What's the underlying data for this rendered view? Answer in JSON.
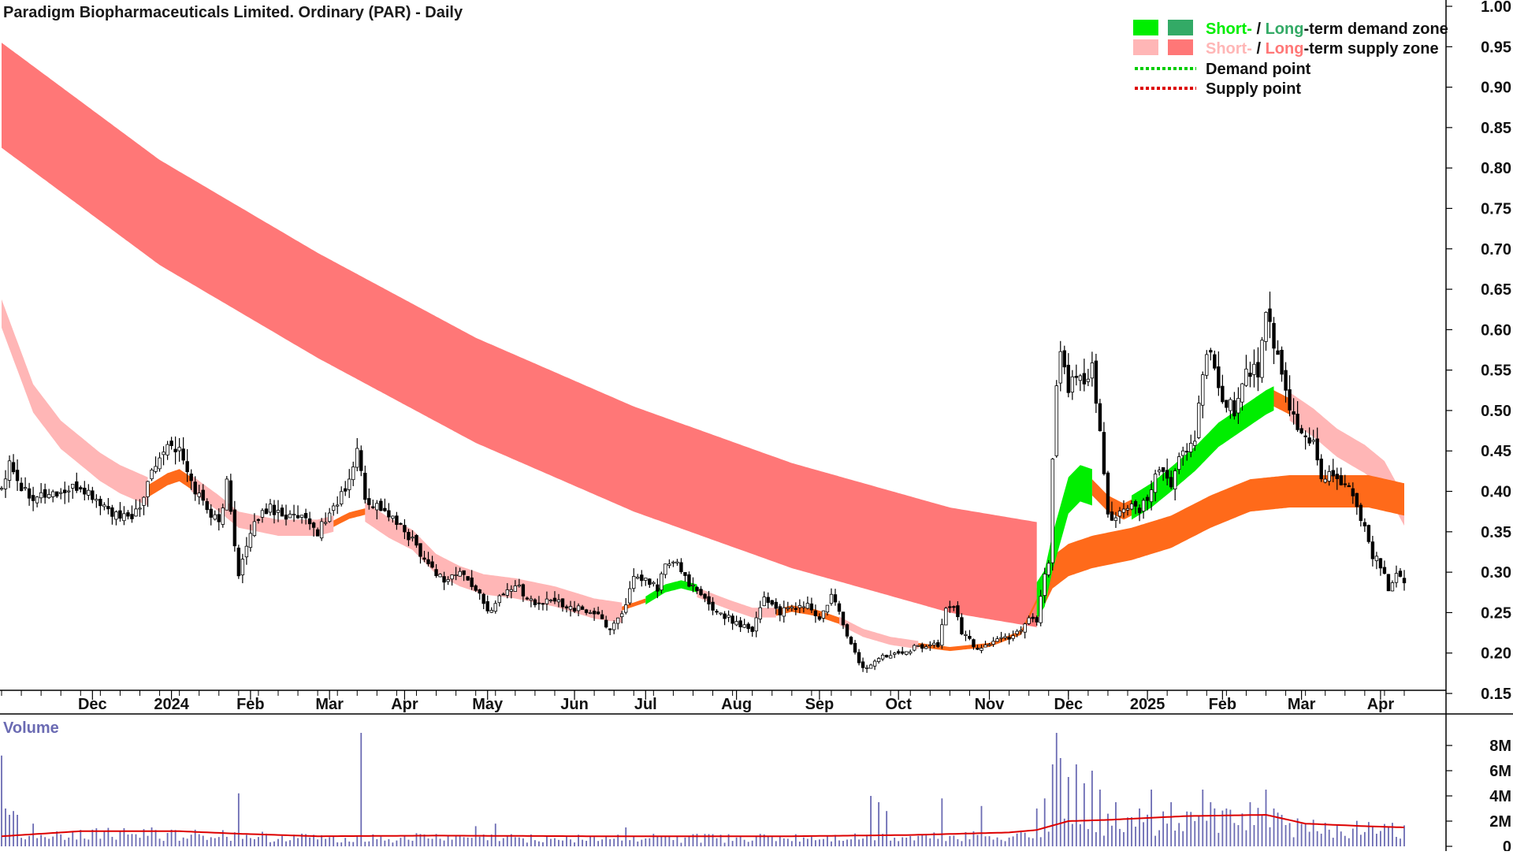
{
  "chart_data": {
    "type": "candlestick",
    "title": "Paradigm Biopharmaceuticals Limited. Ordinary (PAR) - Daily",
    "y_ticks": [
      "1.00",
      "0.95",
      "0.90",
      "0.85",
      "0.80",
      "0.75",
      "0.70",
      "0.65",
      "0.60",
      "0.55",
      "0.50",
      "0.45",
      "0.40",
      "0.35",
      "0.30",
      "0.25",
      "0.20",
      "0.15"
    ],
    "ylim": [
      0.15,
      1.0
    ],
    "x_ticks": [
      "Dec",
      "2024",
      "Feb",
      "Mar",
      "Apr",
      "May",
      "Jun",
      "Jul",
      "Aug",
      "Sep",
      "Oct",
      "Nov",
      "Dec",
      "2025",
      "Feb",
      "Mar",
      "Apr"
    ],
    "x_tick_index": [
      23,
      43,
      63,
      83,
      102,
      123,
      145,
      163,
      186,
      207,
      227,
      250,
      270,
      290,
      309,
      329,
      349
    ],
    "legend": {
      "demand_zone": {
        "prefix_short": "Short-",
        "sep": " / ",
        "prefix_long": "Long",
        "suffix": "-term demand zone"
      },
      "supply_zone": {
        "prefix_short": "Short-",
        "sep": " / ",
        "prefix_long": "Long",
        "suffix": "-term supply zone"
      },
      "demand_point": "Demand point",
      "supply_point": "Supply point"
    },
    "colors": {
      "short_demand": "#00ee00",
      "long_demand": "#33aa66",
      "short_supply": "#ffb6b6",
      "long_supply": "#ff7777",
      "demand_point": "#00cc00",
      "supply_point": "#dd0000",
      "bullish_crossover": "#ff6a1a",
      "volume_bar": "#6b6bb3",
      "volume_ma": "#dd0000",
      "candle": "#000000"
    },
    "close_knots": [
      [
        0,
        0.405
      ],
      [
        2,
        0.44
      ],
      [
        5,
        0.405
      ],
      [
        8,
        0.395
      ],
      [
        15,
        0.398
      ],
      [
        20,
        0.405
      ],
      [
        25,
        0.385
      ],
      [
        30,
        0.365
      ],
      [
        35,
        0.375
      ],
      [
        38,
        0.43
      ],
      [
        42,
        0.46
      ],
      [
        45,
        0.45
      ],
      [
        48,
        0.41
      ],
      [
        52,
        0.38
      ],
      [
        55,
        0.36
      ],
      [
        57,
        0.41
      ],
      [
        60,
        0.3
      ],
      [
        62,
        0.33
      ],
      [
        65,
        0.37
      ],
      [
        68,
        0.38
      ],
      [
        72,
        0.37
      ],
      [
        76,
        0.365
      ],
      [
        80,
        0.35
      ],
      [
        84,
        0.38
      ],
      [
        88,
        0.41
      ],
      [
        90,
        0.455
      ],
      [
        92,
        0.39
      ],
      [
        96,
        0.38
      ],
      [
        100,
        0.36
      ],
      [
        104,
        0.34
      ],
      [
        108,
        0.31
      ],
      [
        112,
        0.29
      ],
      [
        116,
        0.3
      ],
      [
        120,
        0.28
      ],
      [
        123,
        0.25
      ],
      [
        126,
        0.27
      ],
      [
        130,
        0.285
      ],
      [
        135,
        0.26
      ],
      [
        140,
        0.265
      ],
      [
        145,
        0.255
      ],
      [
        150,
        0.25
      ],
      [
        154,
        0.23
      ],
      [
        157,
        0.25
      ],
      [
        160,
        0.29
      ],
      [
        163,
        0.29
      ],
      [
        166,
        0.28
      ],
      [
        168,
        0.31
      ],
      [
        171,
        0.31
      ],
      [
        175,
        0.28
      ],
      [
        180,
        0.255
      ],
      [
        185,
        0.24
      ],
      [
        190,
        0.23
      ],
      [
        193,
        0.27
      ],
      [
        197,
        0.25
      ],
      [
        200,
        0.255
      ],
      [
        204,
        0.26
      ],
      [
        207,
        0.24
      ],
      [
        210,
        0.27
      ],
      [
        212,
        0.25
      ],
      [
        215,
        0.21
      ],
      [
        218,
        0.18
      ],
      [
        221,
        0.19
      ],
      [
        225,
        0.2
      ],
      [
        230,
        0.205
      ],
      [
        234,
        0.21
      ],
      [
        237,
        0.21
      ],
      [
        239,
        0.255
      ],
      [
        241,
        0.26
      ],
      [
        243,
        0.225
      ],
      [
        247,
        0.205
      ],
      [
        251,
        0.215
      ],
      [
        255,
        0.22
      ],
      [
        258,
        0.23
      ],
      [
        260,
        0.245
      ],
      [
        262,
        0.24
      ],
      [
        264,
        0.3
      ],
      [
        265,
        0.31
      ],
      [
        266,
        0.44
      ],
      [
        267,
        0.54
      ],
      [
        268,
        0.57
      ],
      [
        270,
        0.53
      ],
      [
        272,
        0.54
      ],
      [
        274,
        0.53
      ],
      [
        276,
        0.55
      ],
      [
        278,
        0.47
      ],
      [
        280,
        0.37
      ],
      [
        282,
        0.37
      ],
      [
        285,
        0.38
      ],
      [
        288,
        0.375
      ],
      [
        291,
        0.4
      ],
      [
        293,
        0.43
      ],
      [
        296,
        0.41
      ],
      [
        299,
        0.45
      ],
      [
        302,
        0.46
      ],
      [
        304,
        0.55
      ],
      [
        306,
        0.57
      ],
      [
        308,
        0.52
      ],
      [
        310,
        0.51
      ],
      [
        312,
        0.5
      ],
      [
        315,
        0.55
      ],
      [
        318,
        0.55
      ],
      [
        320,
        0.62
      ],
      [
        322,
        0.58
      ],
      [
        324,
        0.54
      ],
      [
        326,
        0.5
      ],
      [
        329,
        0.47
      ],
      [
        332,
        0.46
      ],
      [
        334,
        0.42
      ],
      [
        337,
        0.42
      ],
      [
        340,
        0.41
      ],
      [
        343,
        0.38
      ],
      [
        345,
        0.36
      ],
      [
        347,
        0.32
      ],
      [
        349,
        0.31
      ],
      [
        351,
        0.28
      ],
      [
        353,
        0.3
      ],
      [
        355,
        0.29
      ]
    ],
    "zones": {
      "long_supply": {
        "knots": [
          [
            0,
            0.89
          ],
          [
            40,
            0.745
          ],
          [
            80,
            0.63
          ],
          [
            120,
            0.525
          ],
          [
            160,
            0.44
          ],
          [
            200,
            0.37
          ],
          [
            240,
            0.315
          ],
          [
            262,
            0.297
          ]
        ],
        "width": 0.13
      },
      "short_supply": [
        {
          "knots": [
            [
              0,
              0.62
            ],
            [
              8,
              0.515
            ],
            [
              15,
              0.47
            ],
            [
              25,
              0.43
            ],
            [
              30,
              0.415
            ],
            [
              37,
              0.4
            ]
          ],
          "width": 0.035
        },
        {
          "knots": [
            [
              48,
              0.41
            ],
            [
              55,
              0.385
            ],
            [
              60,
              0.365
            ],
            [
              65,
              0.36
            ],
            [
              70,
              0.355
            ],
            [
              76,
              0.355
            ],
            [
              80,
              0.355
            ],
            [
              84,
              0.36
            ]
          ],
          "width": 0.02
        },
        {
          "knots": [
            [
              92,
              0.375
            ],
            [
              98,
              0.355
            ],
            [
              104,
              0.34
            ],
            [
              110,
              0.31
            ],
            [
              116,
              0.295
            ],
            [
              122,
              0.285
            ],
            [
              130,
              0.28
            ],
            [
              140,
              0.27
            ],
            [
              150,
              0.255
            ],
            [
              157,
              0.25
            ]
          ],
          "width": 0.025
        },
        {
          "knots": [
            [
              176,
              0.275
            ],
            [
              184,
              0.26
            ],
            [
              190,
              0.25
            ],
            [
              196,
              0.25
            ]
          ],
          "width": 0.012
        },
        {
          "knots": [
            [
              212,
              0.24
            ],
            [
              218,
              0.225
            ],
            [
              225,
              0.215
            ],
            [
              232,
              0.21
            ]
          ],
          "width": 0.01
        },
        {
          "knots": [
            [
              326,
              0.505
            ],
            [
              332,
              0.485
            ],
            [
              338,
              0.46
            ],
            [
              345,
              0.44
            ],
            [
              350,
              0.42
            ],
            [
              355,
              0.375
            ]
          ],
          "width": 0.035
        }
      ],
      "short_demand": [
        {
          "knots": [
            [
              163,
              0.265
            ],
            [
              168,
              0.28
            ],
            [
              172,
              0.285
            ],
            [
              176,
              0.28
            ]
          ],
          "width": 0.01
        },
        {
          "knots": [
            [
              262,
              0.265
            ],
            [
              264,
              0.28
            ],
            [
              266,
              0.325
            ],
            [
              268,
              0.36
            ],
            [
              270,
              0.395
            ],
            [
              273,
              0.41
            ],
            [
              276,
              0.405
            ]
          ],
          "width": 0.045
        },
        {
          "knots": [
            [
              286,
              0.38
            ],
            [
              291,
              0.395
            ],
            [
              296,
              0.415
            ],
            [
              302,
              0.44
            ],
            [
              308,
              0.47
            ],
            [
              314,
              0.49
            ],
            [
              320,
              0.51
            ],
            [
              322,
              0.515
            ]
          ],
          "width": 0.03
        }
      ],
      "crossover": [
        {
          "knots": [
            [
              37,
              0.4
            ],
            [
              42,
              0.415
            ],
            [
              45,
              0.42
            ],
            [
              48,
              0.41
            ]
          ],
          "width": 0.015
        },
        {
          "knots": [
            [
              84,
              0.36
            ],
            [
              88,
              0.37
            ],
            [
              92,
              0.375
            ]
          ],
          "width": 0.008
        },
        {
          "knots": [
            [
              157,
              0.255
            ],
            [
              160,
              0.26
            ],
            [
              163,
              0.265
            ]
          ],
          "width": 0.005
        },
        {
          "knots": [
            [
              196,
              0.25
            ],
            [
              200,
              0.255
            ],
            [
              206,
              0.25
            ],
            [
              212,
              0.24
            ]
          ],
          "width": 0.008
        },
        {
          "knots": [
            [
              232,
              0.21
            ],
            [
              240,
              0.205
            ],
            [
              250,
              0.21
            ],
            [
              258,
              0.225
            ],
            [
              262,
              0.265
            ]
          ],
          "width": 0.005
        },
        {
          "knots": [
            [
              276,
              0.405
            ],
            [
              280,
              0.385
            ],
            [
              284,
              0.375
            ],
            [
              286,
              0.38
            ]
          ],
          "width": 0.02
        },
        {
          "knots": [
            [
              322,
              0.515
            ],
            [
              326,
              0.505
            ]
          ],
          "width": 0.02
        },
        {
          "knots": [
            [
              262,
              0.26
            ],
            [
              266,
              0.3
            ],
            [
              270,
              0.315
            ],
            [
              276,
              0.325
            ],
            [
              286,
              0.335
            ],
            [
              296,
              0.35
            ],
            [
              306,
              0.375
            ],
            [
              316,
              0.395
            ],
            [
              326,
              0.4
            ],
            [
              336,
              0.4
            ],
            [
              346,
              0.4
            ],
            [
              355,
              0.39
            ]
          ],
          "width": 0.04
        }
      ]
    },
    "volume": {
      "label": "Volume",
      "ticks": [
        "8M",
        "6M",
        "4M",
        "2M",
        "0"
      ],
      "ylim": [
        0,
        9
      ],
      "baseline_M": 0.9,
      "spikes_M": [
        [
          0,
          7.2
        ],
        [
          1,
          3.0
        ],
        [
          2,
          2.5
        ],
        [
          3,
          2.8
        ],
        [
          4,
          2.5
        ],
        [
          8,
          1.8
        ],
        [
          20,
          1.3
        ],
        [
          38,
          1.5
        ],
        [
          60,
          4.2
        ],
        [
          91,
          9.0
        ],
        [
          120,
          1.6
        ],
        [
          125,
          1.8
        ],
        [
          158,
          1.5
        ],
        [
          220,
          4.0
        ],
        [
          222,
          3.5
        ],
        [
          224,
          2.8
        ],
        [
          238,
          3.8
        ],
        [
          248,
          3.2
        ],
        [
          262,
          3.0
        ],
        [
          264,
          3.8
        ],
        [
          266,
          6.5
        ],
        [
          267,
          9.0
        ],
        [
          268,
          7.0
        ],
        [
          270,
          5.5
        ],
        [
          272,
          6.5
        ],
        [
          274,
          5.0
        ],
        [
          276,
          6.0
        ],
        [
          278,
          4.5
        ],
        [
          282,
          3.5
        ],
        [
          288,
          3.0
        ],
        [
          291,
          4.5
        ],
        [
          296,
          3.5
        ],
        [
          304,
          4.5
        ],
        [
          306,
          3.5
        ],
        [
          310,
          3.0
        ],
        [
          316,
          3.5
        ],
        [
          320,
          4.5
        ],
        [
          322,
          3.0
        ],
        [
          324,
          2.5
        ]
      ],
      "ma_knots_M": [
        [
          0,
          0.8
        ],
        [
          20,
          1.2
        ],
        [
          45,
          1.2
        ],
        [
          60,
          1.0
        ],
        [
          80,
          0.8
        ],
        [
          110,
          0.85
        ],
        [
          150,
          0.8
        ],
        [
          200,
          0.8
        ],
        [
          230,
          0.9
        ],
        [
          255,
          1.1
        ],
        [
          262,
          1.3
        ],
        [
          270,
          2.0
        ],
        [
          280,
          2.1
        ],
        [
          300,
          2.4
        ],
        [
          320,
          2.5
        ],
        [
          330,
          1.8
        ],
        [
          345,
          1.6
        ],
        [
          355,
          1.5
        ]
      ]
    }
  }
}
